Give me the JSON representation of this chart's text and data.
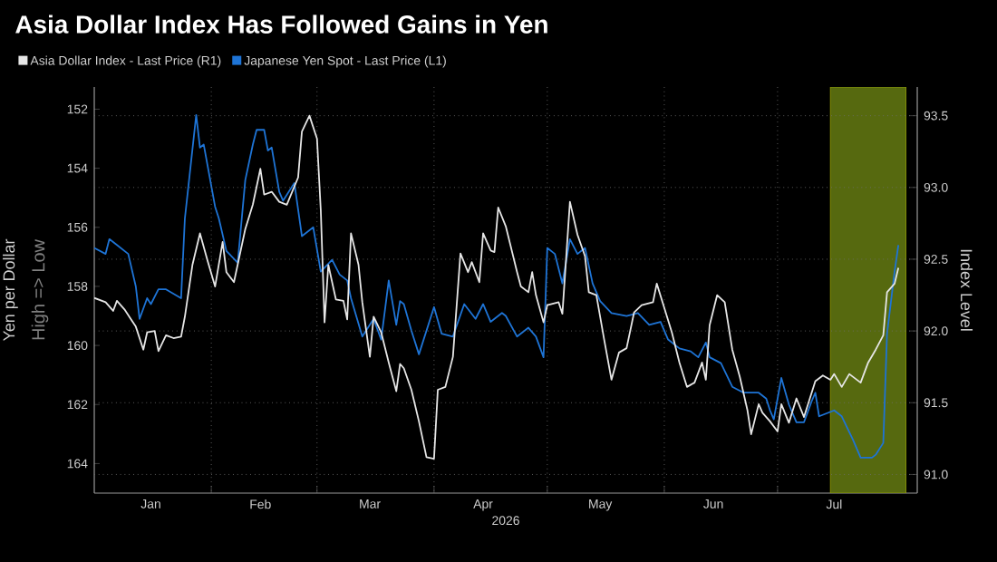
{
  "chart_data": {
    "type": "line",
    "title": "Asia Dollar Index Has Followed Gains in Yen",
    "xlabel": "2026",
    "ylabel": "Yen per Dollar",
    "y2label": "Index Level",
    "annotations": [
      "High => Low"
    ],
    "xlim": [
      "2026-01-01",
      "2026-08-07"
    ],
    "xticks": [
      {
        "value": "2026-01-16",
        "label": "Jan"
      },
      {
        "value": "2026-02-14",
        "label": "Feb"
      },
      {
        "value": "2026-03-15",
        "label": "Mar"
      },
      {
        "value": "2026-04-14",
        "label": "Apr"
      },
      {
        "value": "2026-05-15",
        "label": "May"
      },
      {
        "value": "2026-06-14",
        "label": "Jun"
      },
      {
        "value": "2026-07-16",
        "label": "Jul"
      },
      {
        "value": "2026-02-01",
        "label": null
      },
      {
        "value": "2026-03-01",
        "label": null
      },
      {
        "value": "2026-04-01",
        "label": null
      },
      {
        "value": "2026-05-01",
        "label": null
      },
      {
        "value": "2026-06-01",
        "label": null
      },
      {
        "value": "2026-07-01",
        "label": null
      },
      {
        "value": "2026-08-01",
        "label": null
      }
    ],
    "ylim": [
      165,
      151.25
    ],
    "yticks": [
      152,
      154,
      156,
      158,
      160,
      162,
      164
    ],
    "y2lim": [
      90.87,
      93.7
    ],
    "y2ticks": [
      {
        "value": 91,
        "label": "91.0"
      },
      {
        "value": 91.5,
        "label": "91.5"
      },
      {
        "value": 92,
        "label": "92.0"
      },
      {
        "value": 92.5,
        "label": "92.5"
      },
      {
        "value": 93,
        "label": "93.0"
      },
      {
        "value": 93.5,
        "label": "93.5"
      }
    ],
    "grid": true,
    "legend": "top left",
    "bands": [
      {
        "axis": "x",
        "from": "2026-07-15",
        "to": "2026-08-04",
        "color": "#56690f"
      }
    ],
    "series": [
      {
        "name": "Asia Dollar Index - Last Price (R1)",
        "color": "#e6e6e6",
        "axis": "y2",
        "x": [
          "2026-01-01",
          "2026-01-04",
          "2026-01-06",
          "2026-01-07",
          "2026-01-09",
          "2026-01-11",
          "2026-01-12",
          "2026-01-14",
          "2026-01-15",
          "2026-01-17",
          "2026-01-18",
          "2026-01-20",
          "2026-01-22",
          "2026-01-24",
          "2026-01-25",
          "2026-01-27",
          "2026-01-29",
          "2026-01-31",
          "2026-02-02",
          "2026-02-04",
          "2026-02-05",
          "2026-02-07",
          "2026-02-10",
          "2026-02-12",
          "2026-02-14",
          "2026-02-15",
          "2026-02-17",
          "2026-02-19",
          "2026-02-21",
          "2026-02-24",
          "2026-02-25",
          "2026-02-27",
          "2026-03-01",
          "2026-03-02",
          "2026-03-03",
          "2026-03-04",
          "2026-03-06",
          "2026-03-08",
          "2026-03-09",
          "2026-03-10",
          "2026-03-12",
          "2026-03-13",
          "2026-03-15",
          "2026-03-16",
          "2026-03-18",
          "2026-03-20",
          "2026-03-22",
          "2026-03-23",
          "2026-03-24",
          "2026-03-26",
          "2026-03-28",
          "2026-03-30",
          "2026-04-01",
          "2026-04-02",
          "2026-04-04",
          "2026-04-06",
          "2026-04-08",
          "2026-04-10",
          "2026-04-11",
          "2026-04-13",
          "2026-04-14",
          "2026-04-16",
          "2026-04-17",
          "2026-04-18",
          "2026-04-20",
          "2026-04-23",
          "2026-04-24",
          "2026-04-26",
          "2026-04-27",
          "2026-04-28",
          "2026-04-30",
          "2026-05-01",
          "2026-05-04",
          "2026-05-05",
          "2026-05-07",
          "2026-05-09",
          "2026-05-11",
          "2026-05-12",
          "2026-05-14",
          "2026-05-16",
          "2026-05-18",
          "2026-05-20",
          "2026-05-22",
          "2026-05-24",
          "2026-05-26",
          "2026-05-29",
          "2026-05-30",
          "2026-06-01",
          "2026-06-03",
          "2026-06-05",
          "2026-06-07",
          "2026-06-09",
          "2026-06-11",
          "2026-06-12",
          "2026-06-13",
          "2026-06-15",
          "2026-06-17",
          "2026-06-19",
          "2026-06-21",
          "2026-06-23",
          "2026-06-24",
          "2026-06-26",
          "2026-06-27",
          "2026-06-29",
          "2026-07-01",
          "2026-07-02",
          "2026-07-04",
          "2026-07-06",
          "2026-07-08",
          "2026-07-11",
          "2026-07-13",
          "2026-07-15",
          "2026-07-16",
          "2026-07-18",
          "2026-07-20",
          "2026-07-23",
          "2026-07-25",
          "2026-07-27",
          "2026-07-29",
          "2026-07-30",
          "2026-08-01",
          "2026-08-02"
        ],
        "values": [
          92.23,
          92.2,
          92.14,
          92.21,
          92.15,
          92.07,
          92.03,
          91.87,
          91.99,
          92.0,
          91.86,
          91.97,
          91.95,
          91.96,
          92.1,
          92.46,
          92.68,
          92.49,
          92.31,
          92.62,
          92.41,
          92.34,
          92.71,
          92.88,
          93.13,
          92.95,
          92.97,
          92.9,
          92.88,
          93.07,
          93.39,
          93.5,
          93.34,
          92.84,
          92.06,
          92.46,
          92.22,
          92.21,
          92.08,
          92.68,
          92.46,
          92.2,
          91.82,
          92.1,
          91.99,
          91.78,
          91.58,
          91.77,
          91.74,
          91.59,
          91.37,
          91.12,
          91.11,
          91.59,
          91.61,
          91.82,
          92.54,
          92.41,
          92.48,
          92.34,
          92.68,
          92.56,
          92.55,
          92.86,
          92.73,
          92.41,
          92.31,
          92.27,
          92.41,
          92.25,
          92.06,
          92.18,
          92.2,
          92.12,
          92.9,
          92.67,
          92.52,
          92.27,
          92.25,
          91.95,
          91.66,
          91.85,
          91.88,
          92.13,
          92.18,
          92.2,
          92.33,
          92.16,
          91.99,
          91.78,
          91.61,
          91.64,
          91.78,
          91.66,
          92.04,
          92.25,
          92.2,
          91.87,
          91.68,
          91.45,
          91.28,
          91.49,
          91.43,
          91.37,
          91.3,
          91.49,
          91.36,
          91.53,
          91.4,
          91.65,
          91.69,
          91.66,
          91.7,
          91.61,
          91.7,
          91.64,
          91.78,
          91.87,
          91.97,
          92.27,
          92.33,
          92.44
        ]
      },
      {
        "name": "Japanese Yen Spot - Last Price (L1)",
        "color": "#1e74d6",
        "x": [
          "2026-01-01",
          "2026-01-04",
          "2026-01-05",
          "2026-01-07",
          "2026-01-10",
          "2026-01-12",
          "2026-01-13",
          "2026-01-15",
          "2026-01-16",
          "2026-01-18",
          "2026-01-20",
          "2026-01-24",
          "2026-01-25",
          "2026-01-28",
          "2026-01-29",
          "2026-01-30",
          "2026-02-02",
          "2026-02-03",
          "2026-02-05",
          "2026-02-08",
          "2026-02-10",
          "2026-02-12",
          "2026-02-13",
          "2026-02-15",
          "2026-02-16",
          "2026-02-17",
          "2026-02-19",
          "2026-02-20",
          "2026-02-23",
          "2026-02-25",
          "2026-02-28",
          "2026-03-02",
          "2026-03-05",
          "2026-03-07",
          "2026-03-09",
          "2026-03-10",
          "2026-03-13",
          "2026-03-16",
          "2026-03-18",
          "2026-03-20",
          "2026-03-22",
          "2026-03-23",
          "2026-03-24",
          "2026-03-26",
          "2026-03-28",
          "2026-04-01",
          "2026-04-03",
          "2026-04-06",
          "2026-04-09",
          "2026-04-12",
          "2026-04-14",
          "2026-04-16",
          "2026-04-19",
          "2026-04-20",
          "2026-04-23",
          "2026-04-26",
          "2026-04-28",
          "2026-04-30",
          "2026-05-01",
          "2026-05-03",
          "2026-05-05",
          "2026-05-07",
          "2026-05-09",
          "2026-05-11",
          "2026-05-13",
          "2026-05-15",
          "2026-05-18",
          "2026-05-22",
          "2026-05-25",
          "2026-05-28",
          "2026-05-31",
          "2026-06-02",
          "2026-06-05",
          "2026-06-08",
          "2026-06-10",
          "2026-06-12",
          "2026-06-13",
          "2026-06-16",
          "2026-06-19",
          "2026-06-22",
          "2026-06-26",
          "2026-06-28",
          "2026-06-29",
          "2026-06-30",
          "2026-07-02",
          "2026-07-04",
          "2026-07-06",
          "2026-07-08",
          "2026-07-10",
          "2026-07-11",
          "2026-07-12",
          "2026-07-16",
          "2026-07-18",
          "2026-07-21",
          "2026-07-23",
          "2026-07-26",
          "2026-07-27",
          "2026-07-29",
          "2026-07-30",
          "2026-08-01",
          "2026-08-02"
        ],
        "values": [
          156.7,
          156.9,
          156.4,
          156.6,
          156.9,
          158.0,
          159.1,
          158.4,
          158.6,
          158.1,
          158.1,
          158.4,
          155.7,
          152.2,
          153.3,
          153.2,
          155.3,
          155.7,
          156.8,
          157.2,
          154.4,
          153.2,
          152.7,
          152.7,
          153.4,
          153.3,
          154.8,
          155.1,
          154.5,
          156.3,
          156.0,
          157.5,
          157.1,
          157.6,
          157.8,
          158.4,
          159.7,
          159.1,
          159.8,
          157.8,
          159.3,
          158.5,
          158.6,
          159.5,
          160.3,
          158.7,
          159.6,
          159.7,
          158.6,
          159.1,
          158.6,
          159.2,
          158.9,
          159.0,
          159.7,
          159.4,
          159.7,
          160.4,
          156.7,
          156.9,
          157.9,
          156.4,
          156.9,
          156.7,
          157.9,
          158.5,
          158.9,
          159.0,
          158.9,
          159.3,
          159.2,
          159.8,
          160.1,
          160.2,
          160.4,
          159.9,
          160.4,
          160.6,
          161.4,
          161.6,
          161.6,
          161.8,
          162.2,
          162.5,
          161.1,
          162.0,
          162.6,
          162.6,
          161.9,
          161.6,
          162.4,
          162.2,
          162.4,
          163.2,
          163.8,
          163.8,
          163.7,
          163.3,
          159.6,
          157.5,
          156.6
        ]
      }
    ]
  }
}
